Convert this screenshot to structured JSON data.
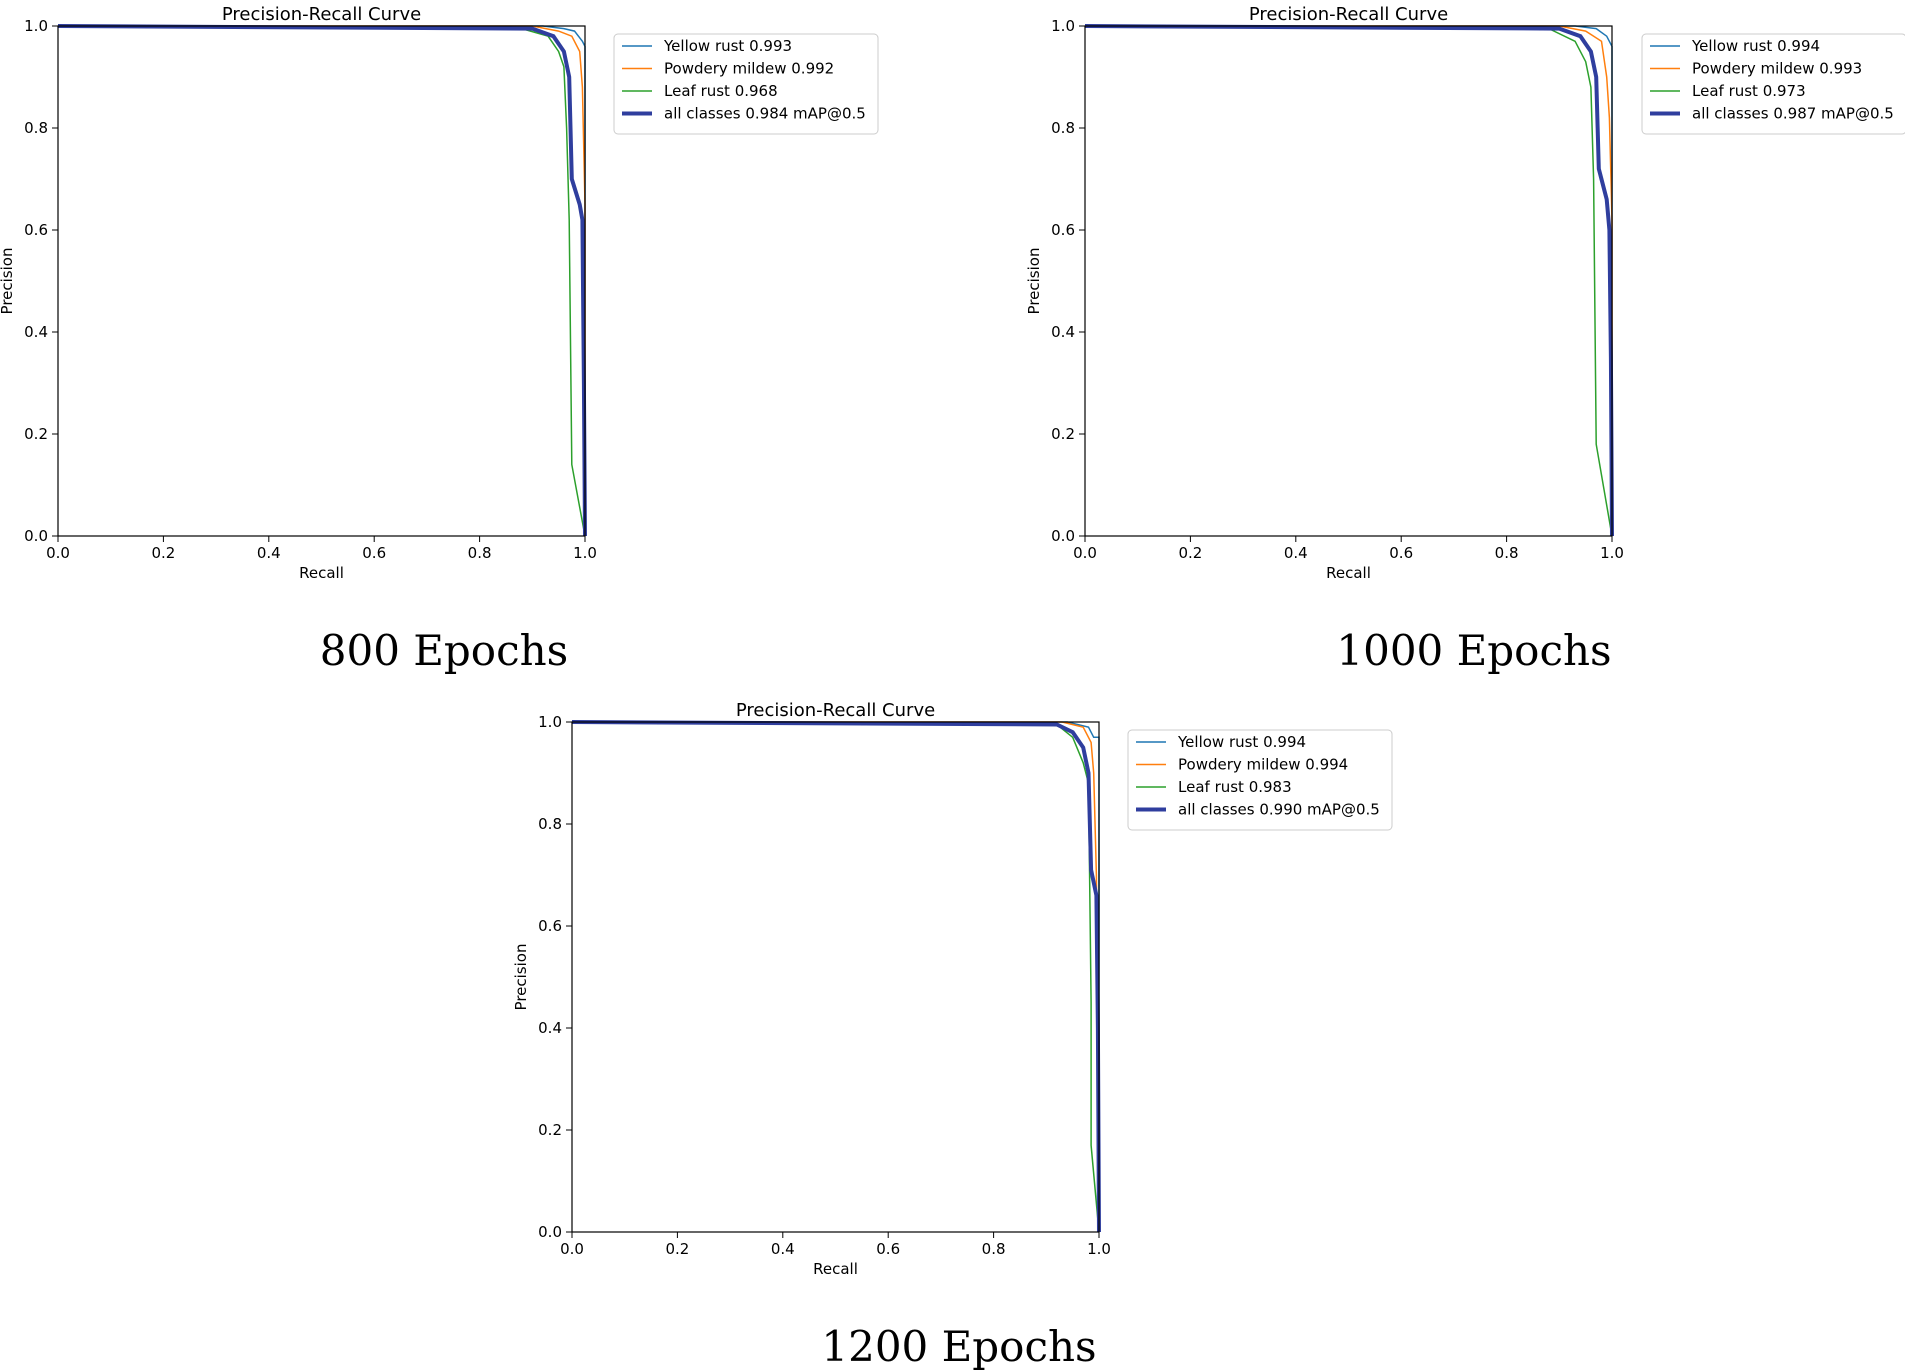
{
  "chart_data": [
    {
      "type": "line",
      "title": "Precision-Recall Curve",
      "caption": "800 Epochs",
      "xlabel": "Recall",
      "ylabel": "Precision",
      "xlim": [
        0,
        1
      ],
      "ylim": [
        0,
        1
      ],
      "xticks": [
        "0.0",
        "0.2",
        "0.4",
        "0.6",
        "0.8",
        "1.0"
      ],
      "yticks": [
        "0.0",
        "0.2",
        "0.4",
        "0.6",
        "0.8",
        "1.0"
      ],
      "grid": false,
      "legend_position": "outside-right-top",
      "series": [
        {
          "name": "Yellow rust 0.993",
          "color": "#1f77b4",
          "points": [
            [
              0,
              1
            ],
            [
              0.92,
              1
            ],
            [
              0.96,
              0.995
            ],
            [
              0.98,
              0.99
            ],
            [
              0.995,
              0.97
            ],
            [
              1.0,
              0.96
            ],
            [
              1.0,
              0
            ]
          ]
        },
        {
          "name": "Powdery mildew 0.992",
          "color": "#ff7f0e",
          "points": [
            [
              0,
              1
            ],
            [
              0.9,
              1
            ],
            [
              0.95,
              0.99
            ],
            [
              0.975,
              0.98
            ],
            [
              0.99,
              0.95
            ],
            [
              0.995,
              0.88
            ],
            [
              1.0,
              0.65
            ],
            [
              1.0,
              0
            ]
          ]
        },
        {
          "name": "Leaf rust 0.968",
          "color": "#2ca02c",
          "points": [
            [
              0,
              1
            ],
            [
              0.88,
              0.995
            ],
            [
              0.93,
              0.98
            ],
            [
              0.95,
              0.95
            ],
            [
              0.96,
              0.92
            ],
            [
              0.965,
              0.8
            ],
            [
              0.97,
              0.62
            ],
            [
              0.975,
              0.14
            ],
            [
              1.0,
              0
            ]
          ]
        },
        {
          "name": "all classes 0.984 mAP@0.5",
          "color": "#2f3e9e",
          "bold": true,
          "points": [
            [
              0,
              1
            ],
            [
              0.9,
              0.995
            ],
            [
              0.94,
              0.98
            ],
            [
              0.96,
              0.95
            ],
            [
              0.97,
              0.9
            ],
            [
              0.975,
              0.7
            ],
            [
              0.99,
              0.65
            ],
            [
              0.995,
              0.62
            ],
            [
              0.998,
              0.3
            ],
            [
              1.0,
              0
            ]
          ]
        }
      ]
    },
    {
      "type": "line",
      "title": "Precision-Recall Curve",
      "caption": "1000 Epochs",
      "xlabel": "Recall",
      "ylabel": "Precision",
      "xlim": [
        0,
        1
      ],
      "ylim": [
        0,
        1
      ],
      "xticks": [
        "0.0",
        "0.2",
        "0.4",
        "0.6",
        "0.8",
        "1.0"
      ],
      "yticks": [
        "0.0",
        "0.2",
        "0.4",
        "0.6",
        "0.8",
        "1.0"
      ],
      "grid": false,
      "legend_position": "outside-right-top",
      "series": [
        {
          "name": "Yellow rust 0.994",
          "color": "#1f77b4",
          "points": [
            [
              0,
              1
            ],
            [
              0.93,
              1
            ],
            [
              0.97,
              0.995
            ],
            [
              0.99,
              0.98
            ],
            [
              1.0,
              0.96
            ],
            [
              1.0,
              0
            ]
          ]
        },
        {
          "name": "Powdery mildew 0.993",
          "color": "#ff7f0e",
          "points": [
            [
              0,
              1
            ],
            [
              0.9,
              1
            ],
            [
              0.95,
              0.99
            ],
            [
              0.98,
              0.97
            ],
            [
              0.99,
              0.9
            ],
            [
              0.995,
              0.82
            ],
            [
              1.0,
              0.62
            ],
            [
              1.0,
              0
            ]
          ]
        },
        {
          "name": "Leaf rust 0.973",
          "color": "#2ca02c",
          "points": [
            [
              0,
              1
            ],
            [
              0.88,
              0.995
            ],
            [
              0.93,
              0.97
            ],
            [
              0.95,
              0.93
            ],
            [
              0.96,
              0.88
            ],
            [
              0.965,
              0.7
            ],
            [
              0.97,
              0.18
            ],
            [
              1.0,
              0
            ]
          ]
        },
        {
          "name": "all classes 0.987 mAP@0.5",
          "color": "#2f3e9e",
          "bold": true,
          "points": [
            [
              0,
              1
            ],
            [
              0.9,
              0.995
            ],
            [
              0.94,
              0.98
            ],
            [
              0.96,
              0.95
            ],
            [
              0.97,
              0.9
            ],
            [
              0.975,
              0.72
            ],
            [
              0.99,
              0.66
            ],
            [
              0.995,
              0.6
            ],
            [
              0.998,
              0.35
            ],
            [
              1.0,
              0
            ]
          ]
        }
      ]
    },
    {
      "type": "line",
      "title": "Precision-Recall Curve",
      "caption": "1200 Epochs",
      "xlabel": "Recall",
      "ylabel": "Precision",
      "xlim": [
        0,
        1
      ],
      "ylim": [
        0,
        1
      ],
      "xticks": [
        "0.0",
        "0.2",
        "0.4",
        "0.6",
        "0.8",
        "1.0"
      ],
      "yticks": [
        "0.0",
        "0.2",
        "0.4",
        "0.6",
        "0.8",
        "1.0"
      ],
      "grid": false,
      "legend_position": "outside-right-top",
      "series": [
        {
          "name": "Yellow rust 0.994",
          "color": "#1f77b4",
          "points": [
            [
              0,
              1
            ],
            [
              0.94,
              1
            ],
            [
              0.98,
              0.99
            ],
            [
              0.99,
              0.97
            ],
            [
              1.0,
              0.97
            ],
            [
              1.0,
              0
            ]
          ]
        },
        {
          "name": "Powdery mildew 0.994",
          "color": "#ff7f0e",
          "points": [
            [
              0,
              1
            ],
            [
              0.93,
              1
            ],
            [
              0.97,
              0.99
            ],
            [
              0.985,
              0.96
            ],
            [
              0.99,
              0.9
            ],
            [
              0.995,
              0.7
            ],
            [
              0.998,
              0.28
            ],
            [
              1.0,
              0
            ]
          ]
        },
        {
          "name": "Leaf rust 0.983",
          "color": "#2ca02c",
          "points": [
            [
              0,
              1
            ],
            [
              0.92,
              0.995
            ],
            [
              0.95,
              0.97
            ],
            [
              0.97,
              0.92
            ],
            [
              0.98,
              0.88
            ],
            [
              0.985,
              0.45
            ],
            [
              0.985,
              0.17
            ],
            [
              1.0,
              0
            ]
          ]
        },
        {
          "name": "all classes 0.990 mAP@0.5",
          "color": "#2f3e9e",
          "bold": true,
          "points": [
            [
              0,
              1
            ],
            [
              0.92,
              0.995
            ],
            [
              0.95,
              0.98
            ],
            [
              0.97,
              0.95
            ],
            [
              0.98,
              0.9
            ],
            [
              0.985,
              0.71
            ],
            [
              0.995,
              0.66
            ],
            [
              0.998,
              0.4
            ],
            [
              1.0,
              0
            ]
          ]
        }
      ]
    }
  ]
}
